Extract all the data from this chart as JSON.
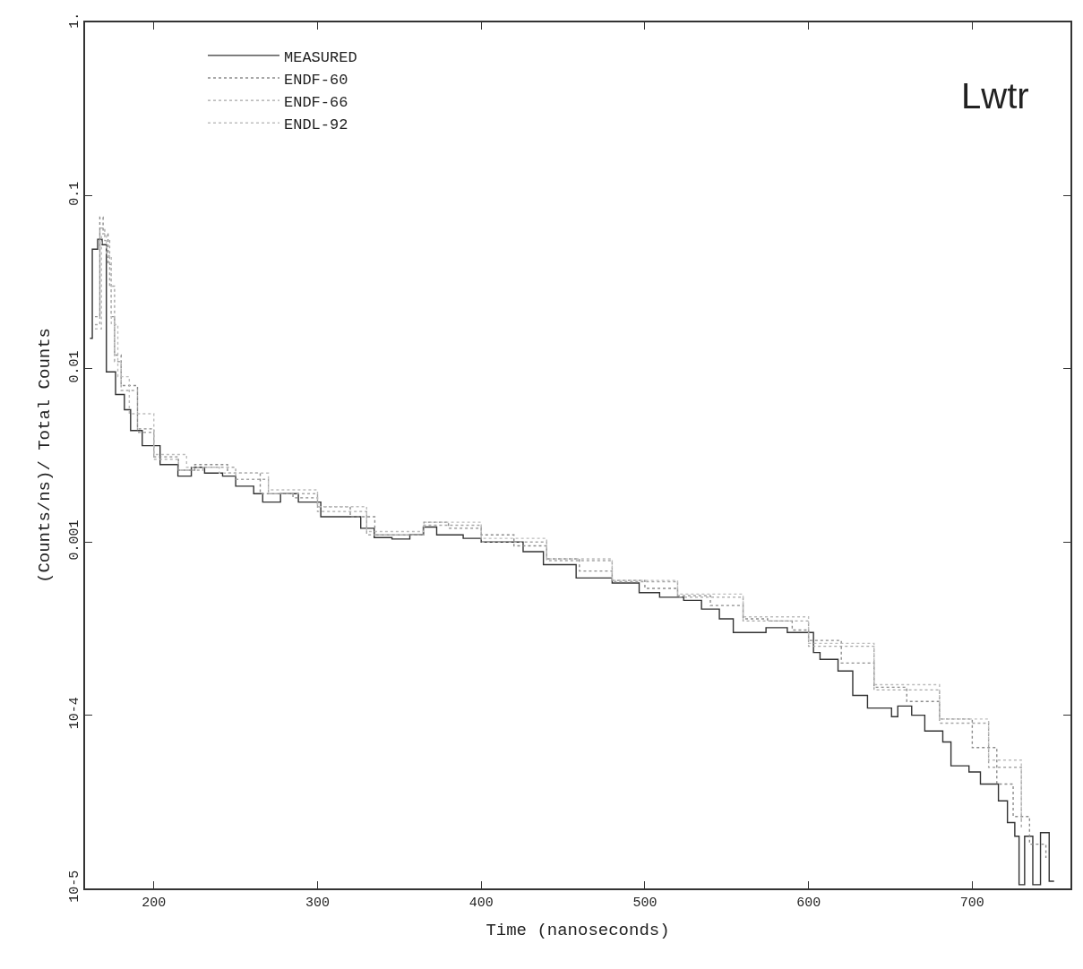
{
  "chart_data": {
    "type": "step",
    "xlabel": "Time (nanoseconds)",
    "ylabel": "(Counts/ns)/ Total Counts",
    "annotations": [
      "Lwtr"
    ],
    "log": "y",
    "legend": "top left",
    "xlim": [
      158,
      760
    ],
    "xticks": [
      200,
      300,
      400,
      500,
      600,
      700
    ],
    "ylim": [
      1e-05,
      1
    ],
    "yticks": [
      {
        "value": 1,
        "label": "1."
      },
      0.1,
      0.01,
      0.001,
      {
        "value": 0.0001,
        "label": "10-4"
      },
      {
        "value": 1e-05,
        "label": "10-5"
      }
    ],
    "series": [
      {
        "name": "MEASURED",
        "color": "#333333",
        "line_style": "solid",
        "x": [
          161,
          162.4,
          165.7,
          168.4,
          171,
          176.6,
          182,
          185.8,
          192.9,
          203.8,
          214.7,
          222.9,
          231,
          242,
          250,
          261,
          266.5,
          277.4,
          288.3,
          302,
          310,
          321,
          326.4,
          334.6,
          345.5,
          356.4,
          364.6,
          372.8,
          389,
          400,
          411,
          425.6,
          438,
          458,
          480,
          496.5,
          509,
          523.7,
          534.6,
          545.5,
          554,
          574,
          587,
          603,
          607,
          618,
          627,
          636,
          650.7,
          654.5,
          663,
          671,
          682,
          687,
          698,
          705,
          712,
          716,
          721.5,
          726,
          728.6,
          732,
          737,
          741.7,
          747,
          750
        ],
        "values": [
          0.015,
          0.049,
          0.056,
          0.052,
          0.0096,
          0.0071,
          0.0058,
          0.0044,
          0.0036,
          0.0028,
          0.0024,
          0.0027,
          0.0025,
          0.0024,
          0.0021,
          0.0019,
          0.0017,
          0.0019,
          0.0017,
          0.0014,
          0.0014,
          0.0014,
          0.0012,
          0.00106,
          0.00104,
          0.0011,
          0.00122,
          0.0011,
          0.00105,
          0.001,
          0.001,
          0.00088,
          0.00074,
          0.00062,
          0.00058,
          0.00051,
          0.00048,
          0.00046,
          0.00041,
          0.00036,
          0.0003,
          0.00032,
          0.0003,
          0.00023,
          0.00021,
          0.00018,
          0.00013,
          0.00011,
          9.8e-05,
          0.000113,
          0.0001,
          8.1e-05,
          7e-05,
          5.1e-05,
          4.7e-05,
          4e-05,
          4e-05,
          3.2e-05,
          2.4e-05,
          2e-05,
          1.05e-05,
          2e-05,
          1.05e-05,
          2.1e-05,
          1.1e-05,
          1.1e-05
        ]
      },
      {
        "name": "ENDF-60",
        "color": "#8c8c8c",
        "line_style": "dotted",
        "x": [
          164,
          167,
          169,
          172,
          174,
          176,
          180,
          190,
          200,
          215,
          225,
          245,
          265,
          285,
          300,
          320,
          335,
          350,
          365,
          380,
          400,
          420,
          440,
          460,
          480,
          500,
          520,
          540,
          560,
          575,
          590,
          600,
          620,
          640,
          660,
          680,
          700,
          715,
          725,
          735,
          745
        ],
        "values": [
          0.02,
          0.075,
          0.06,
          0.04,
          0.02,
          0.012,
          0.008,
          0.0045,
          0.0031,
          0.0026,
          0.0028,
          0.0025,
          0.0019,
          0.0018,
          0.0016,
          0.0014,
          0.0011,
          0.0011,
          0.0013,
          0.0012,
          0.0011,
          0.00095,
          0.0008,
          0.00068,
          0.0006,
          0.00054,
          0.00049,
          0.00043,
          0.00036,
          0.00035,
          0.00031,
          0.00027,
          0.0002,
          0.000145,
          0.00012,
          9.5e-05,
          6.5e-05,
          4e-05,
          2.6e-05,
          1.8e-05,
          1.5e-05
        ]
      },
      {
        "name": "ENDF-66",
        "color": "#a6a6a6",
        "line_style": "dotted",
        "x": [
          164,
          167,
          170,
          173,
          176,
          180,
          190,
          200,
          215,
          230,
          250,
          270,
          300,
          330,
          365,
          400,
          440,
          480,
          520,
          560,
          600,
          640,
          680,
          710,
          730
        ],
        "values": [
          0.018,
          0.065,
          0.055,
          0.03,
          0.011,
          0.0075,
          0.0043,
          0.003,
          0.0026,
          0.0027,
          0.0023,
          0.0019,
          0.0015,
          0.0011,
          0.00125,
          0.001,
          0.00078,
          0.00059,
          0.00048,
          0.00035,
          0.00025,
          0.00014,
          9e-05,
          5e-05,
          2.2e-05
        ]
      },
      {
        "name": "ENDL-92",
        "color": "#bdbdbd",
        "line_style": "dotted",
        "x": [
          164,
          168,
          171,
          174,
          178,
          185,
          200,
          220,
          240,
          270,
          300,
          330,
          365,
          400,
          440,
          480,
          520,
          560,
          600,
          640,
          680,
          710,
          730
        ],
        "values": [
          0.017,
          0.06,
          0.045,
          0.018,
          0.009,
          0.0055,
          0.0032,
          0.0027,
          0.0025,
          0.002,
          0.0016,
          0.00115,
          0.0013,
          0.00105,
          0.0008,
          0.0006,
          0.0005,
          0.00037,
          0.00026,
          0.00015,
          9.5e-05,
          5.5e-05,
          2.5e-05
        ]
      }
    ]
  }
}
